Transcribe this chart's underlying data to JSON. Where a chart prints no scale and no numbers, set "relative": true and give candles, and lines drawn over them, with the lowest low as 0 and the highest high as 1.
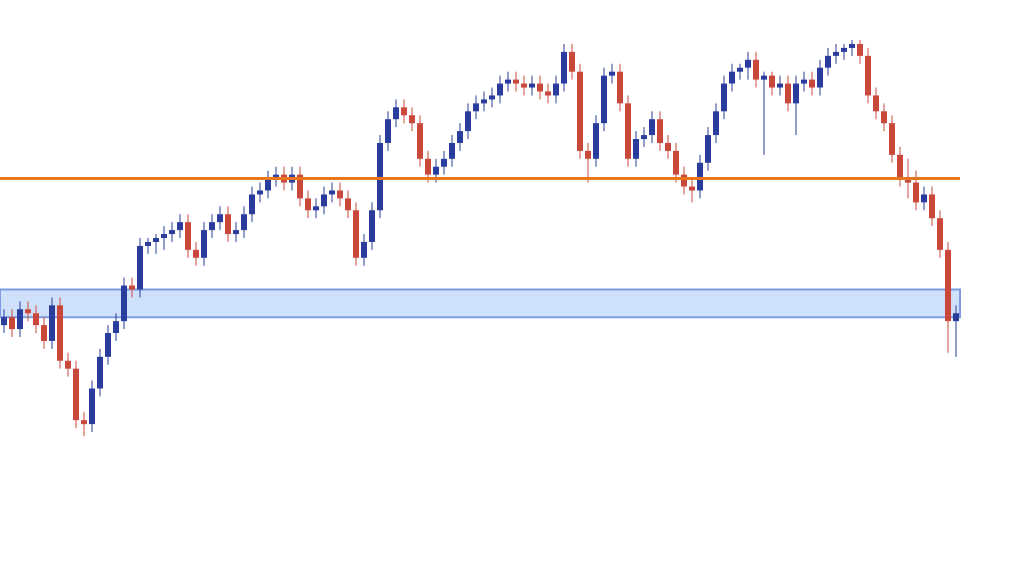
{
  "chart_data": {
    "type": "candlestick",
    "relative": true,
    "categories": [
      null,
      null,
      null,
      null,
      null,
      null,
      null,
      null,
      null,
      null,
      null,
      null,
      null,
      null,
      null,
      null,
      null,
      null,
      null,
      null,
      null,
      null,
      null,
      null,
      null,
      null,
      null,
      null,
      null,
      null,
      null,
      null,
      null,
      null,
      null,
      null,
      null,
      null,
      null,
      null,
      null,
      null,
      null,
      null,
      null,
      null,
      null,
      null,
      null,
      null,
      null,
      null,
      null,
      null,
      null,
      null,
      null,
      null,
      null,
      null,
      null,
      null,
      null,
      null,
      null,
      null,
      null,
      null,
      null,
      null,
      null,
      null,
      null,
      null,
      null,
      null,
      null,
      null,
      null,
      null,
      null,
      null,
      null,
      null,
      null,
      null,
      null,
      null,
      null,
      null,
      null,
      null,
      null,
      null,
      null,
      null,
      null,
      null,
      null,
      null,
      null,
      null,
      null,
      null,
      null,
      null,
      null,
      null,
      null,
      null,
      null,
      null,
      null,
      null,
      null,
      null,
      null,
      null,
      null,
      null
    ],
    "ohlc": [
      [
        0.28,
        0.32,
        0.26,
        0.3
      ],
      [
        0.3,
        0.32,
        0.25,
        0.27
      ],
      [
        0.27,
        0.34,
        0.25,
        0.32
      ],
      [
        0.32,
        0.34,
        0.29,
        0.31
      ],
      [
        0.31,
        0.33,
        0.26,
        0.28
      ],
      [
        0.28,
        0.3,
        0.22,
        0.24
      ],
      [
        0.24,
        0.35,
        0.22,
        0.33
      ],
      [
        0.33,
        0.35,
        0.17,
        0.19
      ],
      [
        0.19,
        0.21,
        0.15,
        0.17
      ],
      [
        0.17,
        0.19,
        0.02,
        0.04
      ],
      [
        0.04,
        0.06,
        0,
        0.03
      ],
      [
        0.03,
        0.14,
        0.01,
        0.12
      ],
      [
        0.12,
        0.22,
        0.1,
        0.2
      ],
      [
        0.2,
        0.28,
        0.18,
        0.26
      ],
      [
        0.26,
        0.31,
        0.24,
        0.29
      ],
      [
        0.29,
        0.4,
        0.27,
        0.38
      ],
      [
        0.38,
        0.4,
        0.35,
        0.37
      ],
      [
        0.37,
        0.5,
        0.35,
        0.48
      ],
      [
        0.48,
        0.5,
        0.46,
        0.49
      ],
      [
        0.49,
        0.51,
        0.46,
        0.5
      ],
      [
        0.5,
        0.53,
        0.47,
        0.51
      ],
      [
        0.51,
        0.54,
        0.49,
        0.52
      ],
      [
        0.52,
        0.56,
        0.5,
        0.54
      ],
      [
        0.54,
        0.56,
        0.45,
        0.47
      ],
      [
        0.47,
        0.49,
        0.43,
        0.45
      ],
      [
        0.45,
        0.54,
        0.43,
        0.52
      ],
      [
        0.52,
        0.56,
        0.5,
        0.54
      ],
      [
        0.54,
        0.58,
        0.52,
        0.56
      ],
      [
        0.56,
        0.58,
        0.49,
        0.51
      ],
      [
        0.51,
        0.54,
        0.49,
        0.52
      ],
      [
        0.52,
        0.58,
        0.5,
        0.56
      ],
      [
        0.56,
        0.63,
        0.54,
        0.61
      ],
      [
        0.61,
        0.64,
        0.59,
        0.62
      ],
      [
        0.62,
        0.67,
        0.6,
        0.65
      ],
      [
        0.65,
        0.68,
        0.63,
        0.66
      ],
      [
        0.66,
        0.68,
        0.62,
        0.64
      ],
      [
        0.64,
        0.68,
        0.62,
        0.66
      ],
      [
        0.66,
        0.68,
        0.58,
        0.6
      ],
      [
        0.6,
        0.62,
        0.55,
        0.57
      ],
      [
        0.57,
        0.6,
        0.55,
        0.58
      ],
      [
        0.58,
        0.63,
        0.56,
        0.61
      ],
      [
        0.61,
        0.64,
        0.59,
        0.62
      ],
      [
        0.62,
        0.64,
        0.58,
        0.6
      ],
      [
        0.6,
        0.62,
        0.55,
        0.57
      ],
      [
        0.57,
        0.59,
        0.43,
        0.45
      ],
      [
        0.45,
        0.51,
        0.43,
        0.49
      ],
      [
        0.49,
        0.59,
        0.47,
        0.57
      ],
      [
        0.57,
        0.76,
        0.55,
        0.74
      ],
      [
        0.74,
        0.82,
        0.72,
        0.8
      ],
      [
        0.8,
        0.85,
        0.78,
        0.83
      ],
      [
        0.83,
        0.85,
        0.79,
        0.81
      ],
      [
        0.81,
        0.83,
        0.77,
        0.79
      ],
      [
        0.79,
        0.81,
        0.68,
        0.7
      ],
      [
        0.7,
        0.72,
        0.64,
        0.66
      ],
      [
        0.66,
        0.7,
        0.64,
        0.68
      ],
      [
        0.68,
        0.72,
        0.66,
        0.7
      ],
      [
        0.7,
        0.76,
        0.68,
        0.74
      ],
      [
        0.74,
        0.79,
        0.72,
        0.77
      ],
      [
        0.77,
        0.84,
        0.75,
        0.82
      ],
      [
        0.82,
        0.86,
        0.8,
        0.84
      ],
      [
        0.84,
        0.87,
        0.82,
        0.85
      ],
      [
        0.85,
        0.88,
        0.83,
        0.86
      ],
      [
        0.86,
        0.91,
        0.84,
        0.89
      ],
      [
        0.89,
        0.92,
        0.87,
        0.9
      ],
      [
        0.9,
        0.92,
        0.87,
        0.89
      ],
      [
        0.89,
        0.91,
        0.86,
        0.88
      ],
      [
        0.88,
        0.91,
        0.86,
        0.89
      ],
      [
        0.89,
        0.91,
        0.85,
        0.87
      ],
      [
        0.87,
        0.89,
        0.84,
        0.86
      ],
      [
        0.86,
        0.91,
        0.84,
        0.89
      ],
      [
        0.89,
        0.99,
        0.87,
        0.97
      ],
      [
        0.97,
        0.99,
        0.9,
        0.92
      ],
      [
        0.92,
        0.94,
        0.7,
        0.72
      ],
      [
        0.72,
        0.74,
        0.64,
        0.7
      ],
      [
        0.7,
        0.81,
        0.68,
        0.79
      ],
      [
        0.79,
        0.93,
        0.77,
        0.91
      ],
      [
        0.91,
        0.94,
        0.89,
        0.92
      ],
      [
        0.92,
        0.94,
        0.82,
        0.84
      ],
      [
        0.84,
        0.86,
        0.68,
        0.7
      ],
      [
        0.7,
        0.77,
        0.68,
        0.75
      ],
      [
        0.75,
        0.78,
        0.73,
        0.76
      ],
      [
        0.76,
        0.82,
        0.74,
        0.8
      ],
      [
        0.8,
        0.82,
        0.72,
        0.74
      ],
      [
        0.74,
        0.76,
        0.7,
        0.72
      ],
      [
        0.72,
        0.74,
        0.64,
        0.66
      ],
      [
        0.66,
        0.68,
        0.61,
        0.63
      ],
      [
        0.63,
        0.65,
        0.59,
        0.62
      ],
      [
        0.62,
        0.71,
        0.6,
        0.69
      ],
      [
        0.69,
        0.78,
        0.67,
        0.76
      ],
      [
        0.76,
        0.84,
        0.74,
        0.82
      ],
      [
        0.82,
        0.91,
        0.8,
        0.89
      ],
      [
        0.89,
        0.94,
        0.87,
        0.92
      ],
      [
        0.92,
        0.94,
        0.9,
        0.93
      ],
      [
        0.93,
        0.97,
        0.9,
        0.95
      ],
      [
        0.95,
        0.97,
        0.88,
        0.9
      ],
      [
        0.9,
        0.92,
        0.71,
        0.91
      ],
      [
        0.91,
        0.92,
        0.86,
        0.88
      ],
      [
        0.88,
        0.91,
        0.86,
        0.89
      ],
      [
        0.89,
        0.91,
        0.82,
        0.84
      ],
      [
        0.84,
        0.91,
        0.76,
        0.89
      ],
      [
        0.89,
        0.92,
        0.87,
        0.9
      ],
      [
        0.9,
        0.92,
        0.86,
        0.88
      ],
      [
        0.88,
        0.95,
        0.86,
        0.93
      ],
      [
        0.93,
        0.98,
        0.91,
        0.96
      ],
      [
        0.96,
        0.99,
        0.94,
        0.97
      ],
      [
        0.97,
        0.99,
        0.95,
        0.98
      ],
      [
        0.98,
        1,
        0.96,
        0.99
      ],
      [
        0.99,
        1,
        0.94,
        0.96
      ],
      [
        0.96,
        0.98,
        0.84,
        0.86
      ],
      [
        0.86,
        0.88,
        0.8,
        0.82
      ],
      [
        0.82,
        0.84,
        0.77,
        0.79
      ],
      [
        0.79,
        0.81,
        0.69,
        0.71
      ],
      [
        0.71,
        0.73,
        0.63,
        0.65
      ],
      [
        0.65,
        0.7,
        0.6,
        0.64
      ],
      [
        0.64,
        0.67,
        0.57,
        0.59
      ],
      [
        0.59,
        0.63,
        0.57,
        0.61
      ],
      [
        0.61,
        0.63,
        0.53,
        0.55
      ],
      [
        0.55,
        0.57,
        0.45,
        0.47
      ],
      [
        0.47,
        0.49,
        0.21,
        0.29
      ],
      [
        0.29,
        0.33,
        0.2,
        0.31
      ]
    ],
    "colors": [
      "#2a3d9c",
      "#c9483b",
      "#2a3d9c",
      "#c9483b",
      "#c9483b",
      "#c9483b",
      "#2a3d9c",
      "#c9483b",
      "#c9483b",
      "#c9483b",
      "#c9483b",
      "#2a3d9c",
      "#2a3d9c",
      "#2a3d9c",
      "#2a3d9c",
      "#2a3d9c",
      "#c9483b",
      "#2a3d9c",
      "#2a3d9c",
      "#2a3d9c",
      "#2a3d9c",
      "#2a3d9c",
      "#2a3d9c",
      "#c9483b",
      "#c9483b",
      "#2a3d9c",
      "#2a3d9c",
      "#2a3d9c",
      "#c9483b",
      "#2a3d9c",
      "#2a3d9c",
      "#2a3d9c",
      "#2a3d9c",
      "#2a3d9c",
      "#2a3d9c",
      "#c9483b",
      "#2a3d9c",
      "#c9483b",
      "#c9483b",
      "#2a3d9c",
      "#2a3d9c",
      "#2a3d9c",
      "#c9483b",
      "#c9483b",
      "#c9483b",
      "#2a3d9c",
      "#2a3d9c",
      "#2a3d9c",
      "#2a3d9c",
      "#2a3d9c",
      "#c9483b",
      "#c9483b",
      "#c9483b",
      "#c9483b",
      "#2a3d9c",
      "#2a3d9c",
      "#2a3d9c",
      "#2a3d9c",
      "#2a3d9c",
      "#2a3d9c",
      "#2a3d9c",
      "#2a3d9c",
      "#2a3d9c",
      "#2a3d9c",
      "#c9483b",
      "#c9483b",
      "#2a3d9c",
      "#c9483b",
      "#c9483b",
      "#2a3d9c",
      "#2a3d9c",
      "#c9483b",
      "#c9483b",
      "#c9483b",
      "#2a3d9c",
      "#2a3d9c",
      "#2a3d9c",
      "#c9483b",
      "#c9483b",
      "#2a3d9c",
      "#2a3d9c",
      "#2a3d9c",
      "#c9483b",
      "#c9483b",
      "#c9483b",
      "#c9483b",
      "#c9483b",
      "#2a3d9c",
      "#2a3d9c",
      "#2a3d9c",
      "#2a3d9c",
      "#2a3d9c",
      "#2a3d9c",
      "#2a3d9c",
      "#c9483b",
      "#2a3d9c",
      "#c9483b",
      "#2a3d9c",
      "#c9483b",
      "#2a3d9c",
      "#2a3d9c",
      "#c9483b",
      "#2a3d9c",
      "#2a3d9c",
      "#2a3d9c",
      "#2a3d9c",
      "#2a3d9c",
      "#c9483b",
      "#c9483b",
      "#c9483b",
      "#c9483b",
      "#c9483b",
      "#c9483b",
      "#c9483b",
      "#c9483b",
      "#2a3d9c",
      "#c9483b",
      "#c9483b",
      "#c9483b",
      "#2a3d9c"
    ],
    "ref_lines": [
      {
        "axis": "y",
        "value": 0.65,
        "color": "#e8761e"
      }
    ],
    "bands": [
      {
        "axis": "y",
        "from": 0.3,
        "to": 0.37,
        "color": "#cfe0fb"
      }
    ]
  }
}
